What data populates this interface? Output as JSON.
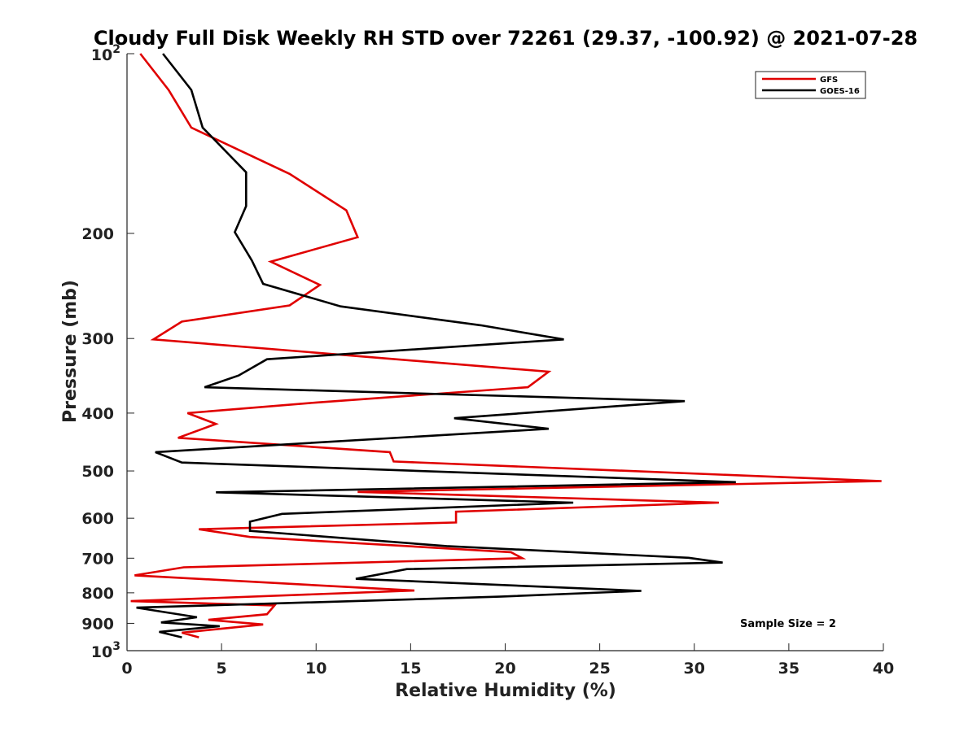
{
  "chart_data": {
    "type": "line",
    "title": "Cloudy Full Disk Weekly RH STD over 72261 (29.37, -100.92) @ 2021-07-28",
    "xlabel": "Relative Humidity (%)",
    "ylabel": "Pressure (mb)",
    "xlim": [
      0,
      40
    ],
    "ylim": [
      100,
      1000
    ],
    "yscale": "log",
    "y_reversed": true,
    "grid": false,
    "legend_position": "top-right",
    "x_ticks": [
      0,
      5,
      10,
      15,
      20,
      25,
      30,
      35,
      40
    ],
    "y_ticks": [
      {
        "value": 100,
        "base": "10",
        "exp": "2"
      },
      {
        "value": 200,
        "label": "200"
      },
      {
        "value": 300,
        "label": "300"
      },
      {
        "value": 400,
        "label": "400"
      },
      {
        "value": 500,
        "label": "500"
      },
      {
        "value": 600,
        "label": "600"
      },
      {
        "value": 700,
        "label": "700"
      },
      {
        "value": 800,
        "label": "800"
      },
      {
        "value": 900,
        "label": "900"
      },
      {
        "value": 1000,
        "base": "10",
        "exp": "3"
      }
    ],
    "annotation": "Sample Size = 2",
    "series": [
      {
        "name": "GFS",
        "color": "#e00000",
        "points": [
          [
            0.7,
            100
          ],
          [
            2.2,
            115
          ],
          [
            3.4,
            133
          ],
          [
            8.6,
            159
          ],
          [
            11.6,
            183
          ],
          [
            12.2,
            203
          ],
          [
            7.6,
            223
          ],
          [
            10.2,
            244
          ],
          [
            8.6,
            264
          ],
          [
            2.9,
            281
          ],
          [
            1.4,
            301
          ],
          [
            22.3,
            341
          ],
          [
            21.2,
            362
          ],
          [
            10.0,
            384
          ],
          [
            3.2,
            400
          ],
          [
            4.7,
            417
          ],
          [
            2.7,
            440
          ],
          [
            13.9,
            465
          ],
          [
            14.1,
            482
          ],
          [
            39.9,
            520
          ],
          [
            12.2,
            542
          ],
          [
            31.3,
            565
          ],
          [
            17.4,
            585
          ],
          [
            17.4,
            610
          ],
          [
            3.8,
            626
          ],
          [
            6.5,
            645
          ],
          [
            20.3,
            684
          ],
          [
            20.9,
            700
          ],
          [
            3.0,
            725
          ],
          [
            0.4,
            748
          ],
          [
            15.2,
            793
          ],
          [
            0.2,
            826
          ],
          [
            7.8,
            840
          ],
          [
            7.4,
            869
          ],
          [
            4.3,
            888
          ],
          [
            7.2,
            904
          ],
          [
            2.9,
            933
          ],
          [
            3.8,
            950
          ]
        ]
      },
      {
        "name": "GOES-16",
        "color": "#000000",
        "points": [
          [
            1.9,
            100
          ],
          [
            3.4,
            115
          ],
          [
            4.0,
            133
          ],
          [
            4.3,
            136
          ],
          [
            6.3,
            158
          ],
          [
            6.3,
            180
          ],
          [
            5.7,
            199
          ],
          [
            6.6,
            222
          ],
          [
            7.2,
            243
          ],
          [
            11.3,
            265
          ],
          [
            18.7,
            285
          ],
          [
            23.1,
            301
          ],
          [
            7.4,
            325
          ],
          [
            5.9,
            346
          ],
          [
            4.1,
            362
          ],
          [
            29.5,
            382
          ],
          [
            17.3,
            408
          ],
          [
            22.3,
            425
          ],
          [
            1.5,
            465
          ],
          [
            2.9,
            484
          ],
          [
            32.2,
            522
          ],
          [
            4.7,
            543
          ],
          [
            23.6,
            565
          ],
          [
            8.2,
            590
          ],
          [
            6.5,
            608
          ],
          [
            6.5,
            630
          ],
          [
            16.9,
            668
          ],
          [
            29.7,
            699
          ],
          [
            31.5,
            712
          ],
          [
            14.8,
            730
          ],
          [
            12.1,
            758
          ],
          [
            27.2,
            794
          ],
          [
            19.7,
            812
          ],
          [
            0.5,
            847
          ],
          [
            3.7,
            879
          ],
          [
            1.8,
            897
          ],
          [
            4.9,
            910
          ],
          [
            1.7,
            930
          ],
          [
            2.9,
            950
          ]
        ]
      }
    ]
  }
}
